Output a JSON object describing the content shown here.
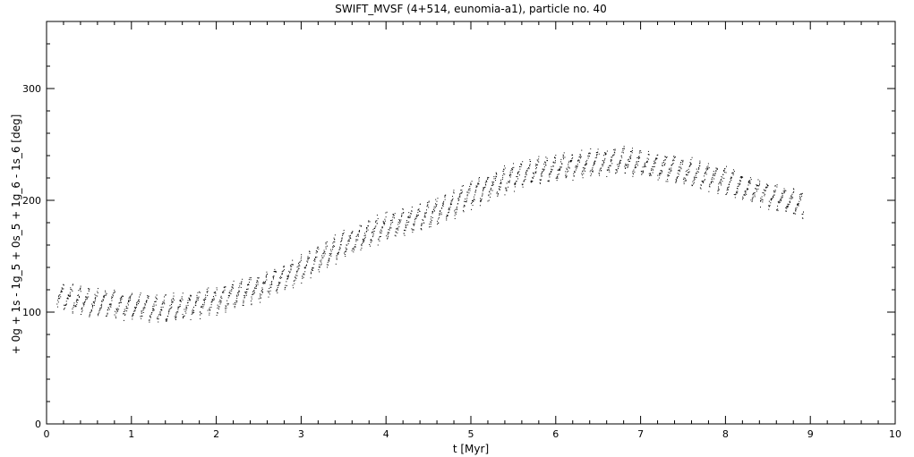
{
  "chart_data": {
    "type": "scatter",
    "title": "SWIFT_MVSF (4+514, eunomia-a1), particle no. 40",
    "xlabel": "t [Myr]",
    "ylabel": "+ 0g + 1s - 1g_5 + 0s_5 + 1g_6 - 1s_6 [deg]",
    "xlim": [
      0,
      10
    ],
    "ylim": [
      0,
      360
    ],
    "xticks": [
      0,
      1,
      2,
      3,
      4,
      5,
      6,
      7,
      8,
      9,
      10
    ],
    "yticks": [
      0,
      100,
      200,
      300
    ],
    "xtick_labels": [
      "0",
      "1",
      "2",
      "3",
      "4",
      "5",
      "6",
      "7",
      "8",
      "9",
      "10"
    ],
    "ytick_labels": [
      "0",
      "100",
      "200",
      "300"
    ],
    "grid": false,
    "marker_color": "#000000",
    "series": [
      {
        "x_range": [
          0.12,
          8.92
        ],
        "trend": {
          "t": [
            0.1,
            0.5,
            1.0,
            1.3,
            1.5,
            2.0,
            2.5,
            3.0,
            3.5,
            4.0,
            4.5,
            5.0,
            5.5,
            6.0,
            6.5,
            6.8,
            7.0,
            7.5,
            8.0,
            8.5,
            8.9
          ],
          "angle": [
            115,
            109,
            106,
            103,
            104,
            111,
            122,
            139,
            161,
            177,
            187,
            205,
            222,
            230,
            234,
            236,
            233,
            227,
            218,
            205,
            196
          ]
        },
        "oscillation_period": 0.1,
        "oscillation_amplitude": 11
      }
    ]
  }
}
